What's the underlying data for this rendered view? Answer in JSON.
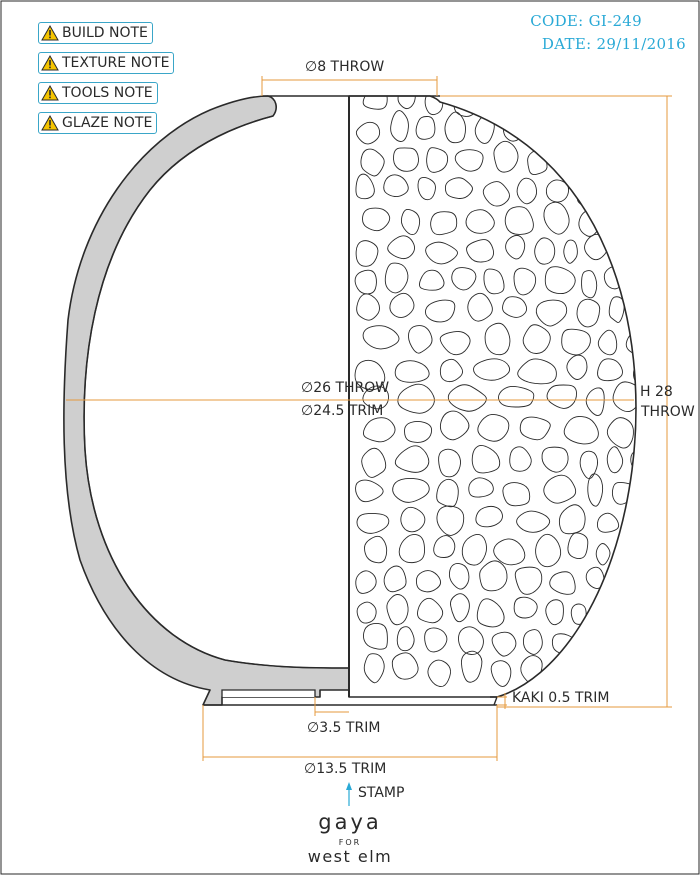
{
  "notes": [
    {
      "label": "BUILD NOTE",
      "icon": "warning-icon"
    },
    {
      "label": "TEXTURE NOTE",
      "icon": "warning-icon"
    },
    {
      "label": "TOOLS NOTE",
      "icon": "warning-icon"
    },
    {
      "label": "GLAZE NOTE",
      "icon": "warning-icon"
    }
  ],
  "meta": {
    "code": "CODE: GI-249",
    "date": "DATE: 29/11/2016"
  },
  "dimensions": {
    "top_opening": "∅8 THROW",
    "body_throw": "∅26 THROW",
    "body_trim": "∅24.5 TRIM",
    "height_value": "H 28",
    "height_method": "THROW",
    "kaki": "KAKI 0.5 TRIM",
    "foot_inner": "∅3.5 TRIM",
    "foot_outer": "∅13.5 TRIM",
    "stamp": "STAMP"
  },
  "brand": {
    "name": "gaya",
    "for": "FOR",
    "partner": "west elm"
  },
  "colors": {
    "dimension_line": "#e59a3c",
    "accent": "#29a9d6",
    "outline": "#2a2a2a",
    "wall_fill": "#cfcfcf",
    "warning_fill": "#f5c400"
  }
}
